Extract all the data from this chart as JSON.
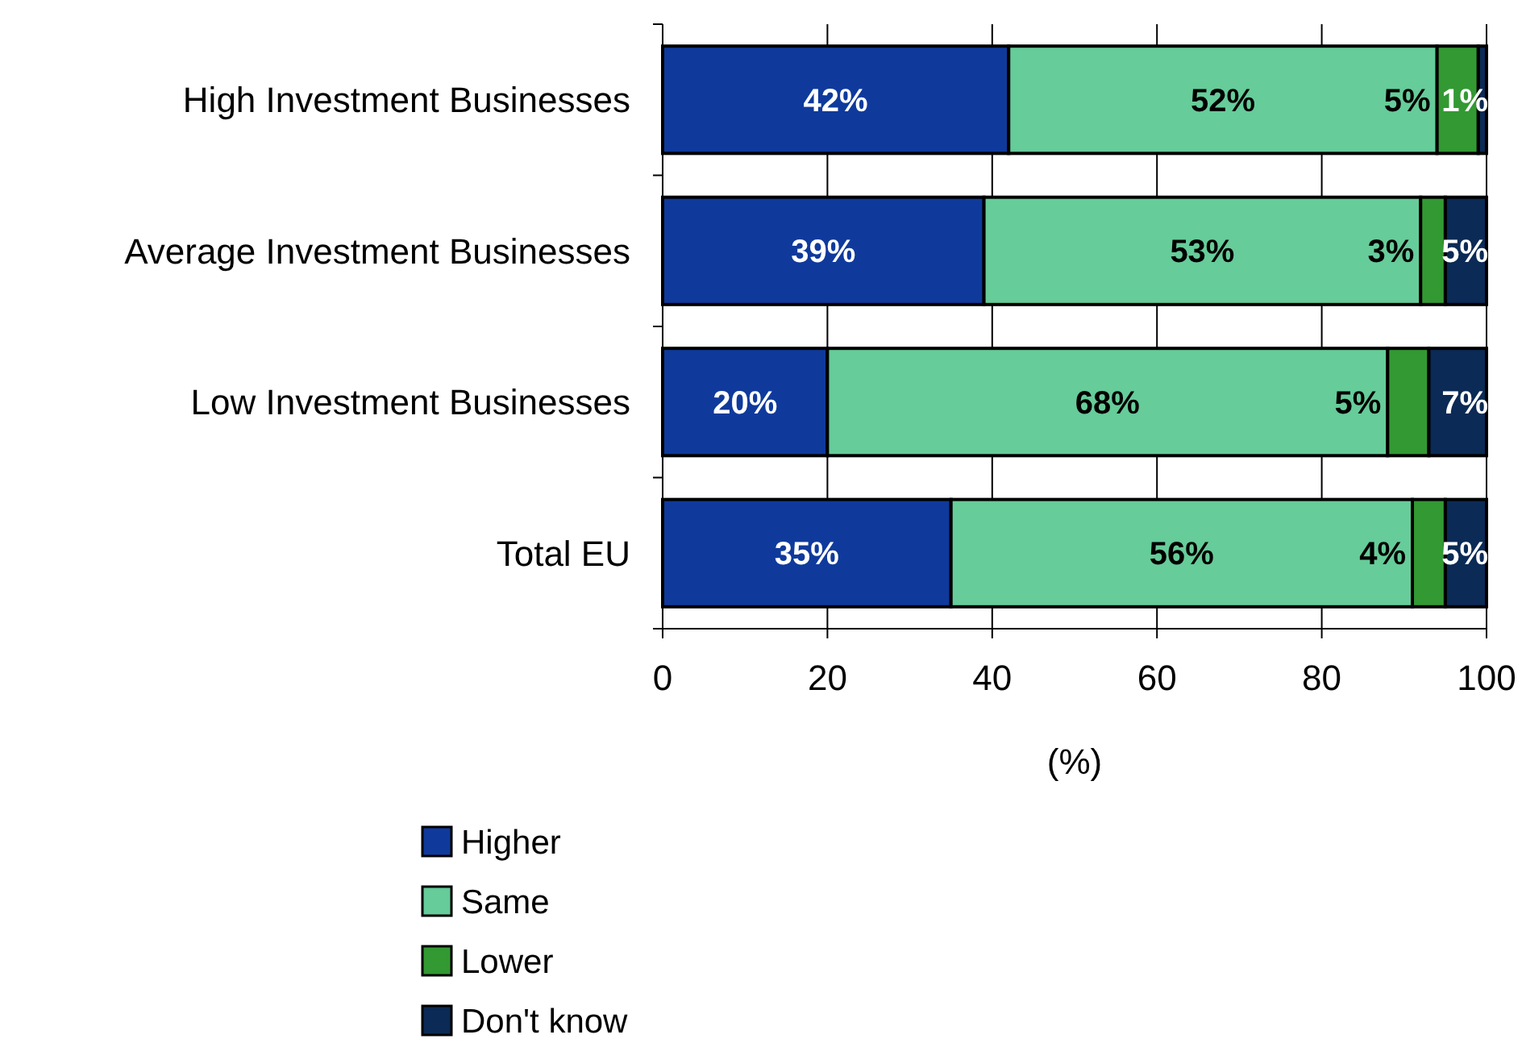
{
  "chart_data": {
    "type": "bar",
    "orientation": "horizontal",
    "stacked": true,
    "categories": [
      "High Investment Businesses",
      "Average Investment Businesses",
      "Low Investment Businesses",
      "Total EU"
    ],
    "series": [
      {
        "name": "Higher",
        "color": "#0f3a9c",
        "values": [
          42,
          39,
          20,
          35
        ],
        "value_labels": [
          "42%",
          "39%",
          "20%",
          "35%"
        ]
      },
      {
        "name": "Same",
        "color": "#66cc99",
        "values": [
          52,
          53,
          68,
          56
        ],
        "value_labels": [
          "52%",
          "53%",
          "68%",
          "56%"
        ]
      },
      {
        "name": "Lower",
        "color": "#339933",
        "values": [
          5,
          3,
          5,
          4
        ],
        "value_labels": [
          "5%",
          "3%",
          "5%",
          "4%"
        ]
      },
      {
        "name": "Don't know",
        "color": "#0b2a55",
        "values": [
          1,
          5,
          7,
          5
        ],
        "value_labels": [
          "1%",
          "5%",
          "7%",
          "5%"
        ]
      }
    ],
    "xlim": [
      0,
      100
    ],
    "xticks": [
      0,
      20,
      40,
      60,
      80,
      100
    ],
    "xlabel": "(%)",
    "grid": "x",
    "legend": "bottom"
  }
}
